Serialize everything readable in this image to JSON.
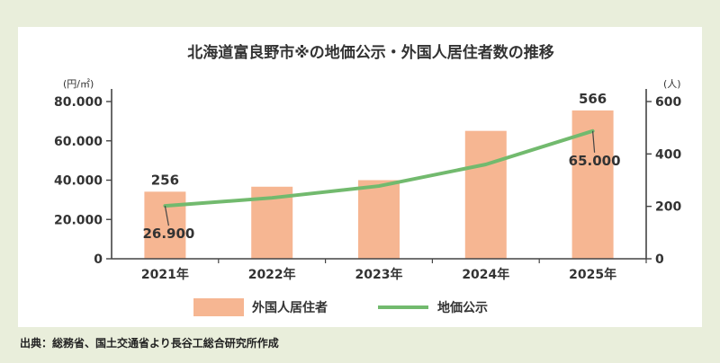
{
  "chart_data": {
    "type": "bar+line",
    "title": "北海道富良野市※の地価公示・外国人居住者数の推移",
    "categories": [
      "2021年",
      "2022年",
      "2023年",
      "2024年",
      "2025年"
    ],
    "series": [
      {
        "name": "外国人居住者",
        "type": "bar",
        "axis": "right",
        "values": [
          256,
          275,
          300,
          488,
          566
        ],
        "color": "#f6b692"
      },
      {
        "name": "地価公示",
        "type": "line",
        "axis": "left",
        "values": [
          26900,
          31000,
          37000,
          48000,
          65000
        ],
        "color": "#72ba6e"
      }
    ],
    "left_axis": {
      "unit": "(円/㎡)",
      "ylim": [
        0,
        80000
      ],
      "ticks": [
        0,
        20000,
        40000,
        60000,
        80000
      ],
      "tick_labels": [
        "0",
        "20.000",
        "40.000",
        "60.000",
        "80.000"
      ]
    },
    "right_axis": {
      "unit": "(人)",
      "ylim": [
        0,
        600
      ],
      "ticks": [
        0,
        200,
        400,
        600
      ],
      "tick_labels": [
        "0",
        "200",
        "400",
        "600"
      ]
    },
    "data_labels": [
      {
        "text": "256",
        "category_index": 0,
        "series": "外国人居住者"
      },
      {
        "text": "566",
        "category_index": 4,
        "series": "外国人居住者"
      },
      {
        "text": "26.900",
        "category_index": 0,
        "series": "地価公示"
      },
      {
        "text": "65.000",
        "category_index": 4,
        "series": "地価公示"
      }
    ],
    "legend_position": "bottom",
    "grid": false
  },
  "source": "出典：総務省、国土交通省より長谷工総合研究所作成"
}
